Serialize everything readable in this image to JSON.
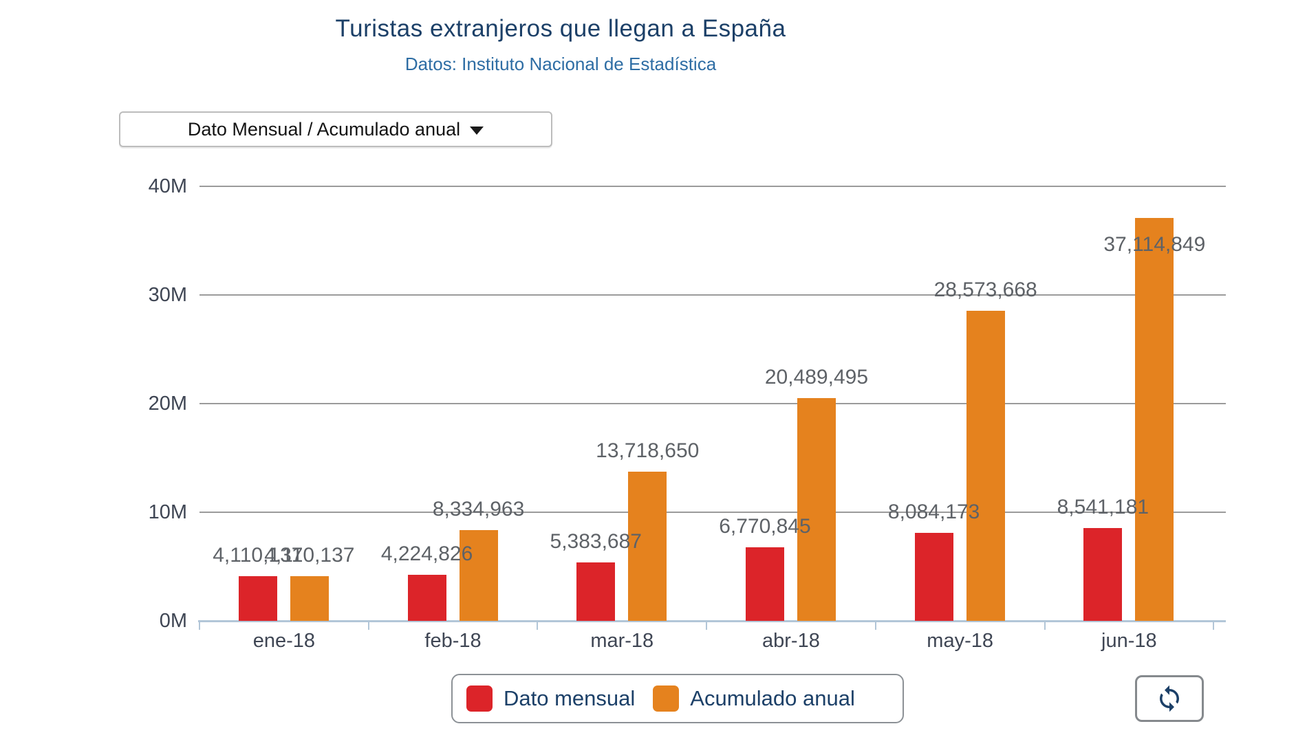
{
  "header": {
    "title": "Turistas extranjeros que llegan a España",
    "subtitle": "Datos: Instituto Nacional de Estadística"
  },
  "controls": {
    "dropdown_label": "Dato Mensual / Acumulado anual",
    "dropdown_icon": "chevron-down-icon",
    "refresh_icon": "refresh-icon"
  },
  "colors": {
    "mensual": "#dc2429",
    "acumulado": "#e5821e",
    "title_navy": "#1c4068",
    "subtitle_blue": "#2e6da4",
    "axis_text": "#3f4654",
    "data_label": "#5e6267",
    "gridline": "#9b9b9b",
    "axis_line": "#b2c6d8"
  },
  "legend": {
    "items": [
      {
        "label": "Dato mensual",
        "color": "#dc2429"
      },
      {
        "label": "Acumulado anual",
        "color": "#e5821e"
      }
    ]
  },
  "chart_data": {
    "type": "bar",
    "title": "Turistas extranjeros que llegan a España",
    "subtitle": "Datos: Instituto Nacional de Estadística",
    "categories": [
      "ene-18",
      "feb-18",
      "mar-18",
      "abr-18",
      "may-18",
      "jun-18"
    ],
    "series": [
      {
        "name": "Dato mensual",
        "color": "#dc2429",
        "values": [
          4110137,
          4224826,
          5383687,
          6770845,
          8084173,
          8541181
        ],
        "labels": [
          "4,110,137",
          "4,224,826",
          "5,383,687",
          "6,770,845",
          "8,084,173",
          "8,541,181"
        ]
      },
      {
        "name": "Acumulado anual",
        "color": "#e5821e",
        "values": [
          4110137,
          8334963,
          13718650,
          20489495,
          28573668,
          37114849
        ],
        "labels": [
          "4,110,137",
          "8,334,963",
          "13,718,650",
          "20,489,495",
          "28,573,668",
          "37,114,849"
        ]
      }
    ],
    "xlabel": "",
    "ylabel": "",
    "ylim": [
      0,
      40000000
    ],
    "yticks": [
      "0M",
      "10M",
      "20M",
      "30M",
      "40M"
    ],
    "grid": true,
    "legend_position": "bottom",
    "data_labels": true
  }
}
